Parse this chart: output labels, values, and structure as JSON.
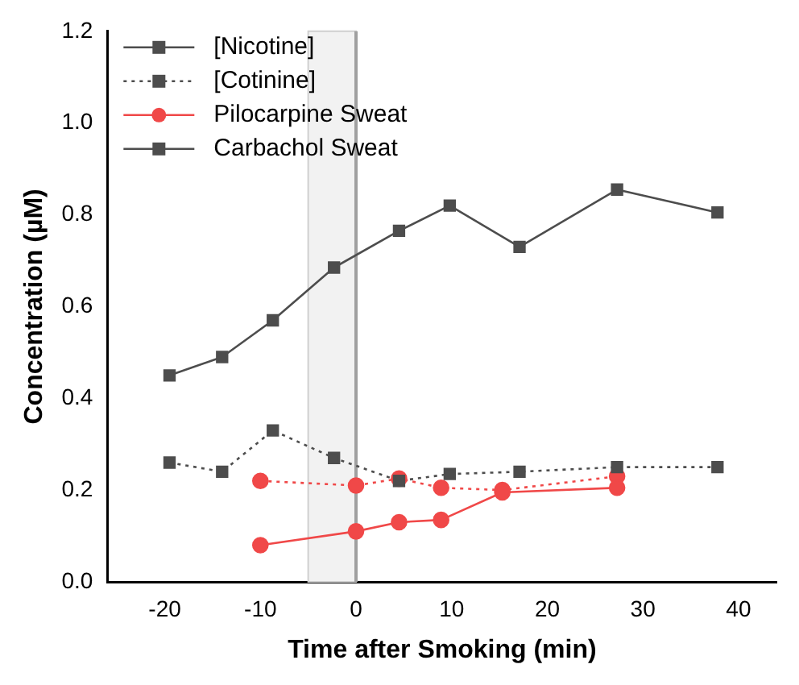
{
  "chart_data": {
    "type": "line",
    "xlabel": "Time after Smoking (min)",
    "ylabel": "Concentration (µM)",
    "xlim": [
      -26,
      44
    ],
    "xticks": [
      -20,
      -10,
      0,
      10,
      20,
      30,
      40
    ],
    "ylim": [
      0,
      1.2
    ],
    "yticks": [
      {
        "value": 0,
        "label": "0.0"
      },
      0.2,
      0.4,
      0.6,
      0.8,
      {
        "value": 1,
        "label": "1.0"
      },
      1.2
    ],
    "grid": false,
    "legend": "top left",
    "marker": "square",
    "bands": [
      {
        "axis": "x",
        "from": -5,
        "to": 0,
        "color": "#f2f2f2"
      }
    ],
    "ref_lines": [
      {
        "axis": "x",
        "value": 0,
        "color": "#a0a0a0"
      }
    ],
    "series": [
      {
        "name": "[Nicotine]",
        "color": "#4d4d4d",
        "line_style": "solid",
        "x": [
          -19.5,
          -14,
          -8.7,
          -2.3,
          4.5,
          9.8,
          17.1,
          27.3,
          37.8
        ],
        "values": [
          0.45,
          0.49,
          0.57,
          0.685,
          0.765,
          0.82,
          0.73,
          0.855,
          0.805
        ]
      },
      {
        "name": "[Cotinine]",
        "color": "#4d4d4d",
        "line_style": "dotted",
        "x": [
          -19.5,
          -14,
          -8.7,
          -2.3,
          4.5,
          9.8,
          17.1,
          27.3,
          37.8
        ],
        "values": [
          0.26,
          0.24,
          0.33,
          0.27,
          0.22,
          0.235,
          0.24,
          0.25,
          0.25
        ]
      },
      {
        "name": "Pilocarpine Sweat",
        "color": "#f04848",
        "line_style": "solid",
        "marker": "circle",
        "x": [
          -10,
          0,
          4.5,
          8.9,
          15.3,
          27.3
        ],
        "values": [
          0.08,
          0.11,
          0.13,
          0.135,
          0.195,
          0.205
        ]
      },
      {
        "color": "#f04848",
        "line_style": "dotted",
        "marker": "circle",
        "x": [
          -10,
          0,
          4.5,
          8.9,
          15.3,
          27.3
        ],
        "values": [
          0.22,
          0.21,
          0.225,
          0.205,
          0.2,
          0.23
        ]
      },
      {
        "name": "Carbachol Sweat",
        "color": "#4d4d4d",
        "line_style": "solid"
      }
    ]
  }
}
